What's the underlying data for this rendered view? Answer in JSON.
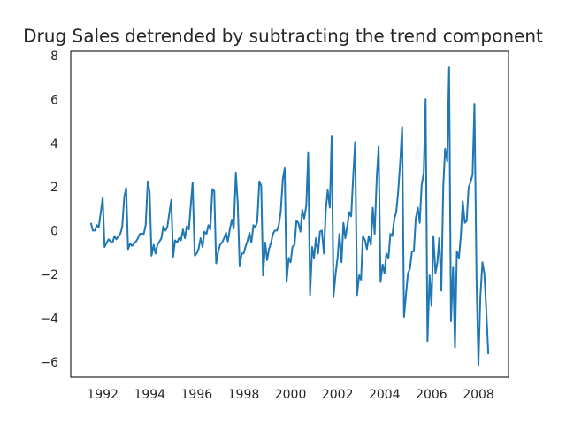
{
  "chart_data": {
    "type": "line",
    "title": "Drug Sales detrended by subtracting the trend component",
    "x": [
      1991.5,
      1991.58,
      1991.67,
      1991.75,
      1991.83,
      1991.92,
      1992,
      1992.08,
      1992.17,
      1992.25,
      1992.33,
      1992.42,
      1992.5,
      1992.58,
      1992.67,
      1992.75,
      1992.83,
      1992.92,
      1993,
      1993.08,
      1993.17,
      1993.25,
      1993.33,
      1993.42,
      1993.5,
      1993.58,
      1993.67,
      1993.75,
      1993.83,
      1993.92,
      1994,
      1994.08,
      1994.17,
      1994.25,
      1994.33,
      1994.42,
      1994.5,
      1994.58,
      1994.67,
      1994.75,
      1994.83,
      1994.92,
      1995,
      1995.08,
      1995.17,
      1995.25,
      1995.33,
      1995.42,
      1995.5,
      1995.58,
      1995.67,
      1995.75,
      1995.83,
      1995.92,
      1996,
      1996.08,
      1996.17,
      1996.25,
      1996.33,
      1996.42,
      1996.5,
      1996.58,
      1996.67,
      1996.75,
      1996.83,
      1996.92,
      1997,
      1997.08,
      1997.17,
      1997.25,
      1997.33,
      1997.42,
      1997.5,
      1997.58,
      1997.67,
      1997.75,
      1997.83,
      1997.92,
      1998,
      1998.08,
      1998.17,
      1998.25,
      1998.33,
      1998.42,
      1998.5,
      1998.58,
      1998.67,
      1998.75,
      1998.83,
      1998.92,
      1999,
      1999.08,
      1999.17,
      1999.25,
      1999.33,
      1999.42,
      1999.5,
      1999.58,
      1999.67,
      1999.75,
      1999.83,
      1999.92,
      2000,
      2000.08,
      2000.17,
      2000.25,
      2000.33,
      2000.42,
      2000.5,
      2000.58,
      2000.67,
      2000.75,
      2000.83,
      2000.92,
      2001,
      2001.08,
      2001.17,
      2001.25,
      2001.33,
      2001.42,
      2001.5,
      2001.58,
      2001.67,
      2001.75,
      2001.83,
      2001.92,
      2002,
      2002.08,
      2002.17,
      2002.25,
      2002.33,
      2002.42,
      2002.5,
      2002.58,
      2002.67,
      2002.75,
      2002.83,
      2002.92,
      2003,
      2003.08,
      2003.17,
      2003.25,
      2003.33,
      2003.42,
      2003.5,
      2003.58,
      2003.67,
      2003.75,
      2003.83,
      2003.92,
      2004,
      2004.08,
      2004.17,
      2004.25,
      2004.33,
      2004.42,
      2004.5,
      2004.58,
      2004.67,
      2004.75,
      2004.83,
      2004.92,
      2005,
      2005.08,
      2005.17,
      2005.25,
      2005.33,
      2005.42,
      2005.5,
      2005.58,
      2005.67,
      2005.75,
      2005.83,
      2005.92,
      2006,
      2006.08,
      2006.17,
      2006.25,
      2006.33,
      2006.42,
      2006.5,
      2006.58,
      2006.67,
      2006.75,
      2006.83,
      2006.92,
      2007,
      2007.08,
      2007.17,
      2007.25,
      2007.33,
      2007.42,
      2007.5,
      2007.58,
      2007.67,
      2007.75,
      2007.83,
      2007.92,
      2008,
      2008.08,
      2008.17,
      2008.25,
      2008.33,
      2008.42
    ],
    "series": [
      {
        "color": "#1f77b4",
        "values": [
          0.4,
          0.05,
          0.05,
          0.3,
          0.2,
          0.9,
          1.55,
          -0.7,
          -0.5,
          -0.35,
          -0.45,
          -0.5,
          -0.2,
          -0.35,
          -0.2,
          -0.1,
          0.2,
          1.6,
          2.0,
          -0.8,
          -0.55,
          -0.65,
          -0.55,
          -0.45,
          -0.3,
          -0.1,
          -0.1,
          -0.1,
          0.3,
          2.3,
          1.8,
          -1.1,
          -0.6,
          -1.0,
          -0.6,
          -0.45,
          -0.3,
          0.25,
          0.05,
          0.2,
          0.8,
          1.45,
          -1.15,
          -0.4,
          -0.5,
          -0.3,
          -0.4,
          0.1,
          -0.3,
          0.25,
          0.1,
          1.2,
          2.25,
          -1.1,
          -1.0,
          -0.8,
          -0.3,
          -0.7,
          0.0,
          -0.1,
          0.3,
          0.1,
          1.95,
          1.85,
          -1.45,
          -0.9,
          -0.6,
          -0.5,
          -0.3,
          -0.05,
          -0.45,
          0.15,
          0.55,
          0.15,
          2.7,
          1.3,
          -1.55,
          -1.0,
          -1.0,
          -0.7,
          -0.4,
          -0.05,
          -0.5,
          0.3,
          0.2,
          0.45,
          2.3,
          2.1,
          -2.0,
          -0.5,
          -1.3,
          -0.8,
          -0.5,
          -0.1,
          0.05,
          0.05,
          0.3,
          0.9,
          2.4,
          2.9,
          -2.3,
          -1.2,
          -1.4,
          -0.7,
          -0.6,
          0.5,
          0.4,
          0.0,
          1.0,
          0.6,
          1.2,
          3.6,
          -2.9,
          -0.7,
          -1.2,
          -0.3,
          -1.0,
          0.0,
          0.05,
          -1.0,
          1.0,
          1.9,
          1.1,
          4.35,
          -2.95,
          -1.9,
          -1.2,
          -0.1,
          -1.4,
          0.4,
          -0.3,
          0.3,
          0.9,
          0.7,
          2.6,
          4.1,
          -2.9,
          -2.0,
          -2.2,
          -0.2,
          -0.4,
          -0.8,
          -0.2,
          -0.6,
          1.1,
          -0.1,
          2.5,
          3.9,
          -2.3,
          -1.5,
          -1.9,
          -1.0,
          -1.2,
          -0.1,
          -0.2,
          0.6,
          0.9,
          1.8,
          3.2,
          4.8,
          -3.9,
          -2.8,
          -1.9,
          -1.7,
          -0.9,
          -0.9,
          0.6,
          1.1,
          0.4,
          2.1,
          2.7,
          6.05,
          -5.0,
          -2.0,
          -3.4,
          -0.2,
          -1.9,
          -1.4,
          -0.3,
          -2.7,
          2.0,
          3.8,
          3.2,
          7.5,
          -4.1,
          -1.6,
          -5.3,
          -0.9,
          -1.2,
          -0.2,
          1.4,
          0.4,
          0.5,
          2.0,
          2.3,
          2.6,
          5.85,
          -2.3,
          -6.1,
          -3.0,
          -1.4,
          -1.9,
          -3.5,
          -5.6
        ]
      }
    ],
    "xlim": [
      1990.64,
      2009.28
    ],
    "xticks": [
      1992,
      1994,
      1996,
      1998,
      2000,
      2002,
      2004,
      2006,
      2008
    ],
    "ylim": [
      -6.65,
      8.24
    ],
    "yticks": [
      {
        "value": -6,
        "label": "−6"
      },
      {
        "value": -4,
        "label": "−4"
      },
      {
        "value": -2,
        "label": "−2"
      },
      0,
      2,
      4,
      6,
      8
    ]
  }
}
